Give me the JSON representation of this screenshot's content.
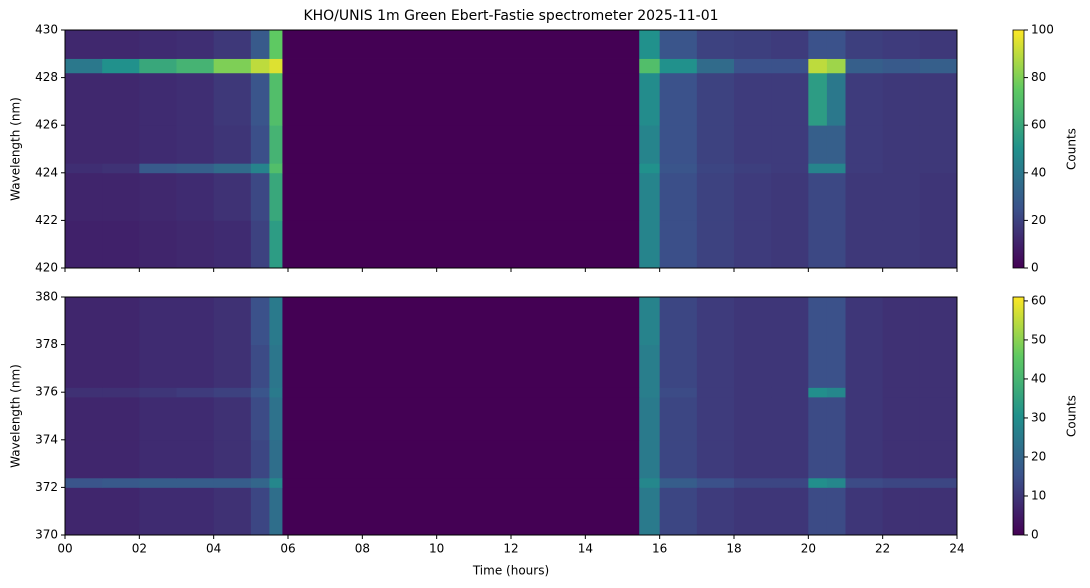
{
  "chart_data": [
    {
      "type": "heatmap",
      "title": "KHO/UNIS 1m Green Ebert-Fastie spectrometer 2025-11-01",
      "ylabel": "Wavelength (nm)",
      "colorbar_label": "Counts",
      "colormap": "viridis",
      "xlim": [
        0,
        24
      ],
      "ylim": [
        420,
        430
      ],
      "yticks": [
        420,
        422,
        424,
        426,
        428,
        430
      ],
      "clim": [
        0,
        100
      ],
      "cticks": [
        0,
        20,
        40,
        60,
        80,
        100
      ],
      "xbins": [
        0,
        1,
        2,
        3,
        4,
        5,
        5.5,
        5.85,
        15.45,
        16,
        17,
        18,
        19,
        20,
        20.5,
        21,
        22,
        23,
        24
      ],
      "ybins": [
        420,
        422,
        424,
        424.4,
        426,
        428.2,
        428.8,
        430
      ],
      "values": [
        [
          10,
          10,
          11,
          12,
          13,
          20,
          55,
          0,
          45,
          24,
          20,
          18,
          17,
          22,
          22,
          17,
          17,
          16
        ],
        [
          11,
          11,
          12,
          13,
          15,
          22,
          60,
          0,
          45,
          24,
          20,
          18,
          17,
          22,
          22,
          17,
          17,
          16
        ],
        [
          14,
          15,
          28,
          30,
          35,
          45,
          70,
          0,
          50,
          26,
          21,
          19,
          18,
          45,
          45,
          18,
          17,
          17
        ],
        [
          12,
          12,
          13,
          14,
          16,
          24,
          65,
          0,
          45,
          25,
          20,
          18,
          18,
          30,
          30,
          18,
          17,
          17
        ],
        [
          12,
          12,
          13,
          14,
          17,
          26,
          70,
          0,
          48,
          25,
          20,
          18,
          18,
          55,
          40,
          18,
          17,
          17
        ],
        [
          40,
          50,
          60,
          65,
          80,
          90,
          95,
          0,
          70,
          50,
          35,
          25,
          25,
          90,
          85,
          30,
          28,
          30
        ],
        [
          12,
          12,
          13,
          14,
          17,
          28,
          75,
          0,
          50,
          26,
          20,
          19,
          18,
          25,
          25,
          19,
          18,
          17
        ]
      ]
    },
    {
      "type": "heatmap",
      "xlabel": "Time (hours)",
      "ylabel": "Wavelength (nm)",
      "colorbar_label": "Counts",
      "colormap": "viridis",
      "xlim": [
        0,
        24
      ],
      "ylim": [
        370,
        380
      ],
      "xticks": [
        {
          "value": 0,
          "label": "00"
        },
        {
          "value": 2,
          "label": "02"
        },
        {
          "value": 4,
          "label": "04"
        },
        {
          "value": 6,
          "label": "06"
        },
        {
          "value": 8,
          "label": "08"
        },
        10,
        12,
        14,
        16,
        18,
        20,
        22,
        24
      ],
      "yticks": [
        370,
        372,
        374,
        376,
        378,
        380
      ],
      "clim": [
        0,
        61
      ],
      "cticks": [
        0,
        10,
        20,
        30,
        40,
        50,
        60
      ],
      "xbins": [
        0,
        1,
        2,
        3,
        4,
        5,
        5.5,
        5.85,
        15.45,
        16,
        17,
        18,
        19,
        20,
        20.5,
        21,
        22,
        23,
        24
      ],
      "ybins": [
        370,
        372,
        372.4,
        374,
        375.8,
        376.2,
        378,
        380
      ],
      "values": [
        [
          7,
          7,
          8,
          8,
          9,
          13,
          22,
          0,
          25,
          13,
          11,
          10,
          10,
          14,
          14,
          10,
          9,
          9
        ],
        [
          16,
          17,
          18,
          18,
          18,
          20,
          28,
          0,
          28,
          18,
          15,
          13,
          13,
          30,
          28,
          14,
          13,
          13
        ],
        [
          7,
          7,
          8,
          8,
          9,
          13,
          22,
          0,
          25,
          13,
          11,
          10,
          10,
          14,
          14,
          10,
          9,
          9
        ],
        [
          7,
          7,
          8,
          8,
          9,
          14,
          23,
          0,
          25,
          13,
          11,
          10,
          10,
          14,
          14,
          10,
          9,
          9
        ],
        [
          9,
          9,
          10,
          11,
          12,
          16,
          25,
          0,
          26,
          14,
          11,
          10,
          10,
          30,
          28,
          10,
          9,
          9
        ],
        [
          7,
          7,
          8,
          8,
          9,
          14,
          24,
          0,
          26,
          13,
          11,
          10,
          10,
          15,
          15,
          10,
          9,
          9
        ],
        [
          7,
          7,
          8,
          8,
          9,
          15,
          25,
          0,
          27,
          13,
          11,
          10,
          10,
          15,
          15,
          10,
          9,
          9
        ]
      ]
    }
  ]
}
